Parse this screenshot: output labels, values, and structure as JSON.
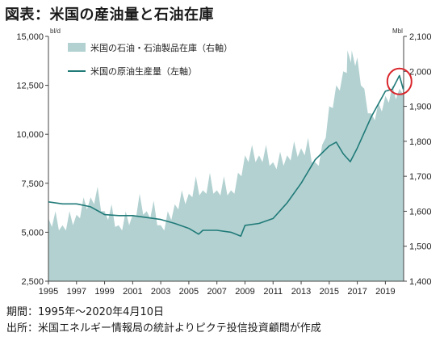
{
  "title": "図表：米国の産油量と石油在庫",
  "notes": {
    "period": "期間：1995年～2020年4月10日",
    "source": "出所：米国エネルギー情報局の統計よりピクテ投信投資顧問が作成"
  },
  "chart_data": {
    "type": "area+line",
    "left_unit": "bl/d",
    "right_unit": "Mbl",
    "left_axis": {
      "ylim": [
        2500,
        15000
      ],
      "ticks": [
        "2,500",
        "5,000",
        "7,500",
        "10,000",
        "12,500",
        "15,000"
      ]
    },
    "right_axis": {
      "ylim": [
        1400,
        2100
      ],
      "ticks": [
        "1,400",
        "1,500",
        "1,600",
        "1,700",
        "1,800",
        "1,900",
        "2,000",
        "2,100"
      ]
    },
    "x_axis": {
      "xlim": [
        1995,
        2020.3
      ],
      "ticks": [
        "1995",
        "1997",
        "1999",
        "2001",
        "2003",
        "2005",
        "2007",
        "2009",
        "2011",
        "2013",
        "2015",
        "2017",
        "2019"
      ]
    },
    "colors": {
      "inventory": "#b3d1d1",
      "production": "#1f7a78",
      "highlight": "#d9262c"
    },
    "series": [
      {
        "name": "米国の石油・石油製品在庫（右軸）",
        "axis": "right",
        "style": "area",
        "x": [
          1995.0,
          1995.5,
          1996.0,
          1996.5,
          1997.0,
          1997.5,
          1998.0,
          1998.5,
          1999.0,
          1999.5,
          2000.0,
          2000.5,
          2001.0,
          2001.5,
          2002.0,
          2002.5,
          2003.0,
          2003.5,
          2004.0,
          2004.5,
          2005.0,
          2005.5,
          2006.0,
          2006.5,
          2007.0,
          2007.5,
          2008.0,
          2008.5,
          2009.0,
          2009.5,
          2010.0,
          2010.5,
          2011.0,
          2011.5,
          2012.0,
          2012.5,
          2013.0,
          2013.5,
          2014.0,
          2014.5,
          2015.0,
          2015.5,
          2016.0,
          2016.3,
          2016.6,
          2017.0,
          2017.5,
          2018.0,
          2018.5,
          2019.0,
          2019.5,
          2020.0,
          2020.27
        ],
        "values": [
          1580,
          1600,
          1560,
          1600,
          1590,
          1640,
          1640,
          1670,
          1600,
          1620,
          1560,
          1600,
          1590,
          1650,
          1600,
          1630,
          1560,
          1600,
          1620,
          1660,
          1650,
          1700,
          1660,
          1710,
          1660,
          1700,
          1660,
          1710,
          1760,
          1790,
          1760,
          1790,
          1740,
          1770,
          1760,
          1800,
          1780,
          1810,
          1740,
          1790,
          1900,
          1960,
          2000,
          2060,
          2060,
          2040,
          1950,
          1880,
          1910,
          1930,
          1960,
          1950,
          1990
        ]
      },
      {
        "name": "米国の原油生産量（左軸）",
        "axis": "left",
        "style": "line",
        "x": [
          1995.0,
          1996.0,
          1997.0,
          1998.0,
          1999.0,
          2000.0,
          2001.0,
          2002.0,
          2003.0,
          2004.0,
          2005.0,
          2005.7,
          2006.0,
          2007.0,
          2008.0,
          2008.7,
          2009.0,
          2010.0,
          2011.0,
          2012.0,
          2013.0,
          2014.0,
          2015.0,
          2015.5,
          2016.0,
          2016.5,
          2017.0,
          2018.0,
          2019.0,
          2019.5,
          2020.0,
          2020.27
        ],
        "values": [
          6550,
          6450,
          6450,
          6300,
          5900,
          5850,
          5850,
          5750,
          5650,
          5450,
          5200,
          4900,
          5100,
          5100,
          5000,
          4800,
          5350,
          5450,
          5700,
          6500,
          7500,
          8700,
          9400,
          9600,
          9000,
          8600,
          9300,
          10900,
          12200,
          12300,
          13000,
          12300
        ]
      }
    ]
  }
}
